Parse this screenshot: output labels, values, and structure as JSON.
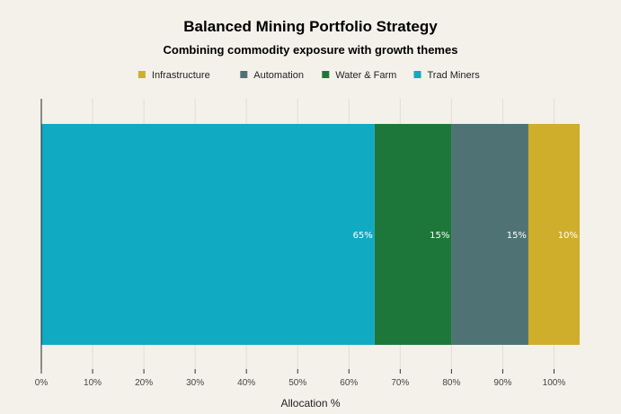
{
  "chart_data": {
    "type": "bar",
    "orientation": "horizontal",
    "stacked": true,
    "title": "Balanced Mining Portfolio Strategy",
    "subtitle": "Combining commodity exposure with growth themes",
    "xlabel": "Allocation %",
    "ylabel": "",
    "xlim": [
      0,
      105
    ],
    "x_ticks": [
      0,
      10,
      20,
      30,
      40,
      50,
      60,
      70,
      80,
      90,
      100
    ],
    "x_tick_labels": [
      "0%",
      "10%",
      "20%",
      "30%",
      "40%",
      "50%",
      "60%",
      "70%",
      "80%",
      "90%",
      "100%"
    ],
    "grid": true,
    "legend_position": "top-center",
    "legend_order": [
      "Infrastructure",
      "Automation",
      "Water & Farm",
      "Trad Miners"
    ],
    "series": [
      {
        "name": "Trad Miners",
        "value": 65,
        "label": "65%",
        "color": "#10aac2"
      },
      {
        "name": "Water & Farm",
        "value": 15,
        "label": "15%",
        "color": "#1e773a"
      },
      {
        "name": "Automation",
        "value": 15,
        "label": "15%",
        "color": "#4f7374"
      },
      {
        "name": "Infrastructure",
        "value": 10,
        "label": "10%",
        "color": "#cfae2c"
      }
    ]
  }
}
